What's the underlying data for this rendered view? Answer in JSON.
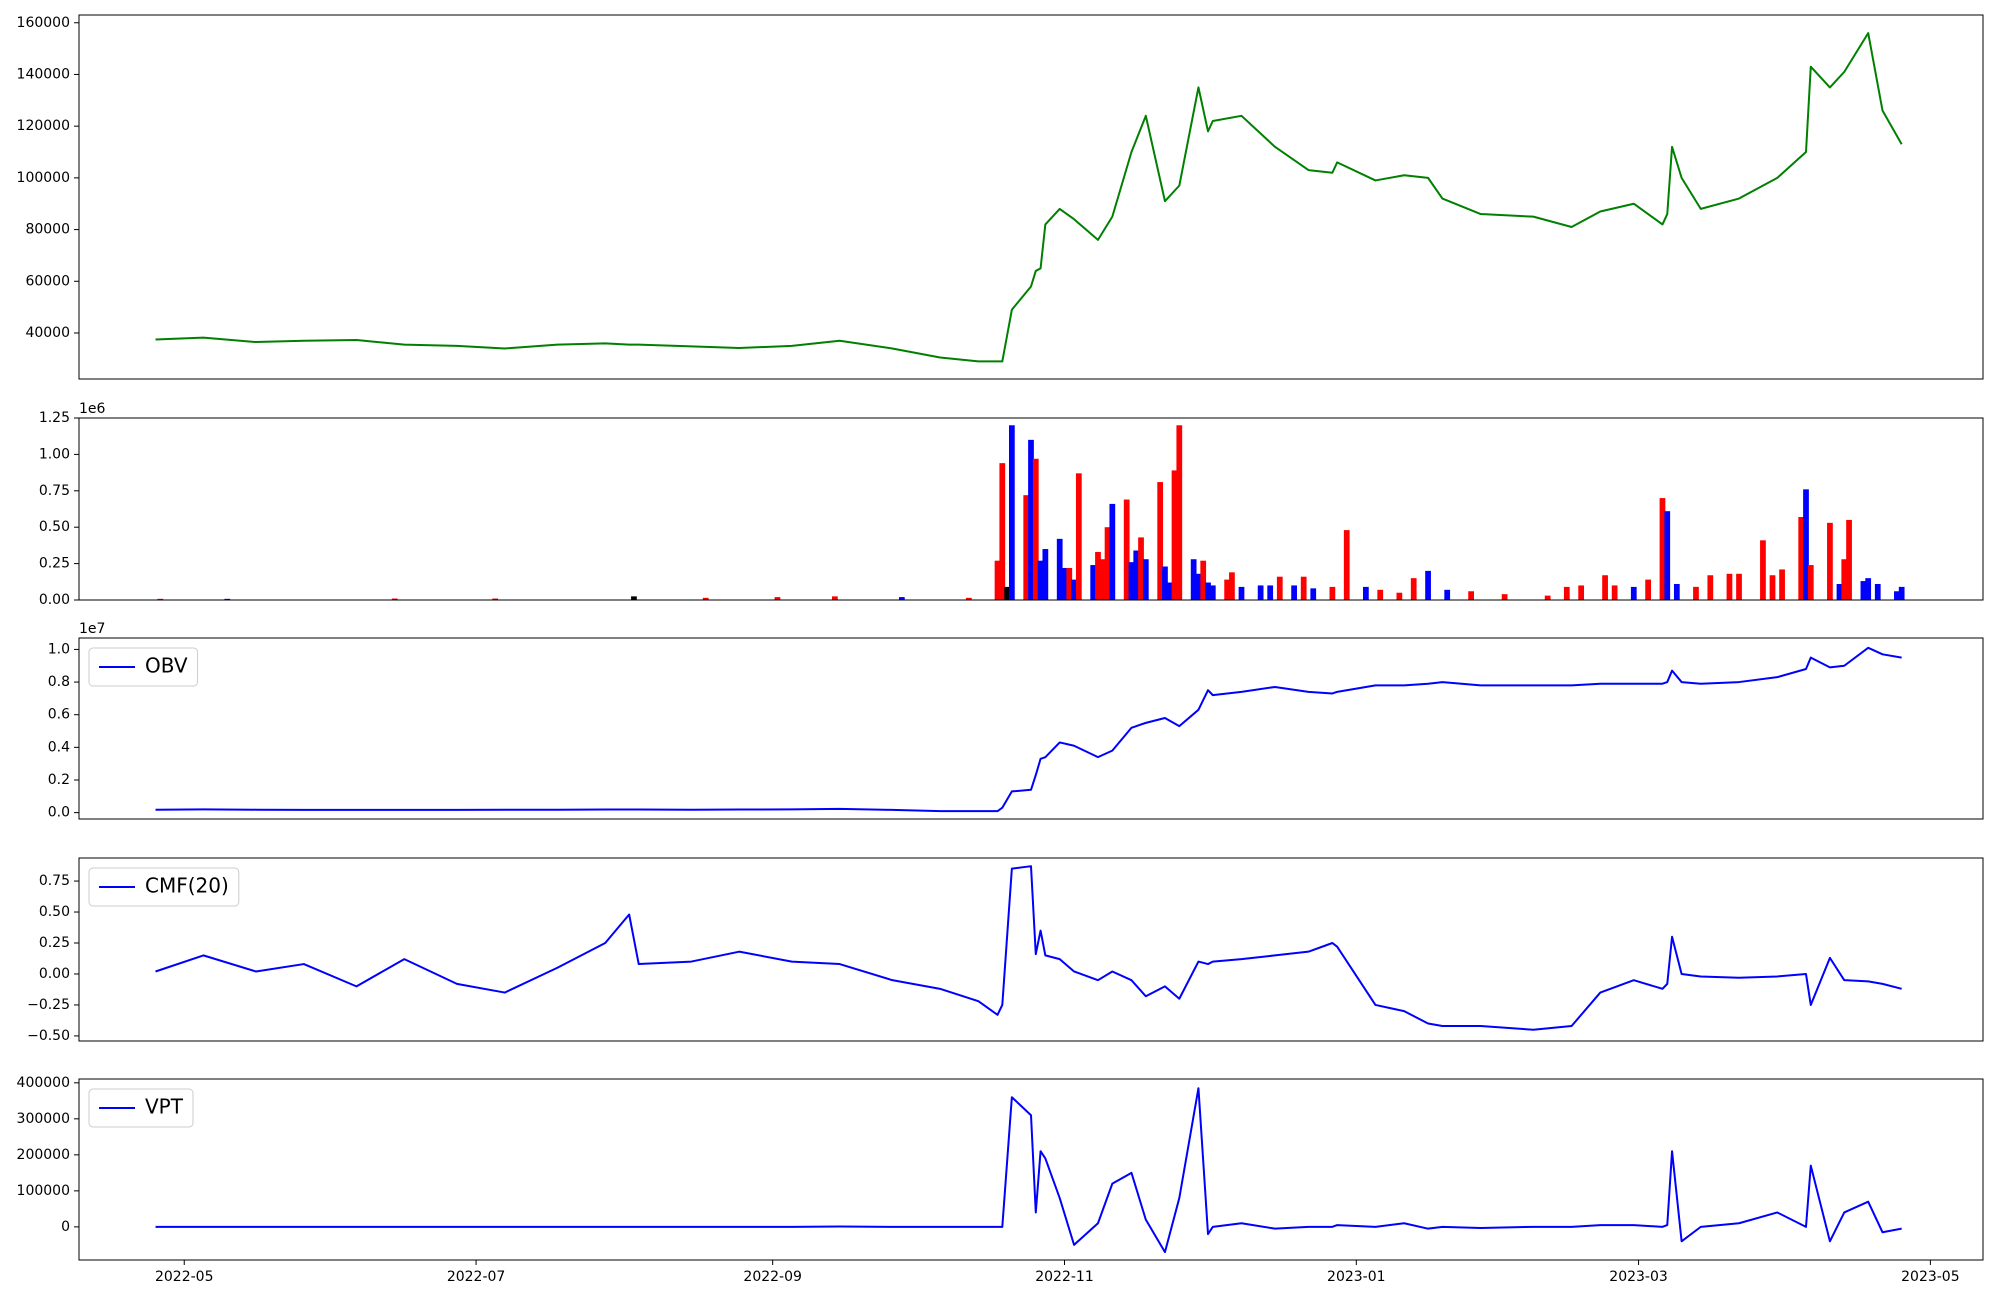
{
  "chart_data": [
    {
      "type": "line",
      "x": [
        "2022-04-25",
        "2022-05-05",
        "2022-05-16",
        "2022-05-26",
        "2022-06-06",
        "2022-06-16",
        "2022-06-27",
        "2022-07-07",
        "2022-07-18",
        "2022-07-28",
        "2022-08-02",
        "2022-08-04",
        "2022-08-15",
        "2022-08-25",
        "2022-09-05",
        "2022-09-15",
        "2022-09-26",
        "2022-10-06",
        "2022-10-14",
        "2022-10-18",
        "2022-10-19",
        "2022-10-21",
        "2022-10-25",
        "2022-10-26",
        "2022-10-27",
        "2022-10-28",
        "2022-10-31",
        "2022-11-03",
        "2022-11-08",
        "2022-11-11",
        "2022-11-15",
        "2022-11-18",
        "2022-11-22",
        "2022-11-25",
        "2022-11-29",
        "2022-12-01",
        "2022-12-02",
        "2022-12-08",
        "2022-12-15",
        "2022-12-22",
        "2022-12-27",
        "2022-12-28",
        "2023-01-05",
        "2023-01-11",
        "2023-01-16",
        "2023-01-19",
        "2023-01-27",
        "2023-02-07",
        "2023-02-15",
        "2023-02-21",
        "2023-02-28",
        "2023-03-06",
        "2023-03-07",
        "2023-03-08",
        "2023-03-10",
        "2023-03-14",
        "2023-03-22",
        "2023-03-30",
        "2023-04-05",
        "2023-04-06",
        "2023-04-10",
        "2023-04-13",
        "2023-04-18",
        "2023-04-21",
        "2023-04-25"
      ],
      "series": [
        {
          "color": "#008000",
          "values": [
            37500,
            38200,
            36500,
            37000,
            37300,
            35500,
            35000,
            34000,
            35500,
            36000,
            35500,
            35500,
            34800,
            34200,
            35000,
            37000,
            34000,
            30500,
            29000,
            29000,
            29000,
            49000,
            58000,
            64000,
            65000,
            82000,
            88000,
            84000,
            76000,
            85000,
            110000,
            124000,
            91000,
            97000,
            135000,
            118000,
            122000,
            124000,
            112000,
            103000,
            102000,
            106000,
            99000,
            101000,
            100000,
            92000,
            86000,
            85000,
            81000,
            87000,
            90000,
            82000,
            86000,
            112000,
            100000,
            88000,
            92000,
            100000,
            110000,
            143000,
            135000,
            141000,
            156000,
            126000,
            113000
          ]
        }
      ],
      "xlim": [
        "2022-04-09",
        "2023-05-12"
      ],
      "ylim": [
        22200,
        163000
      ],
      "yticks": [
        40000,
        60000,
        80000,
        100000,
        120000,
        140000,
        160000
      ]
    },
    {
      "type": "bar",
      "x": [
        "2022-04-26",
        "2022-05-10",
        "2022-06-14",
        "2022-07-05",
        "2022-08-03",
        "2022-08-18",
        "2022-09-02",
        "2022-09-14",
        "2022-09-28",
        "2022-10-12",
        "2022-10-18",
        "2022-10-19",
        "2022-10-20",
        "2022-10-21",
        "2022-10-24",
        "2022-10-25",
        "2022-10-26",
        "2022-10-27",
        "2022-10-28",
        "2022-10-31",
        "2022-11-01",
        "2022-11-02",
        "2022-11-03",
        "2022-11-04",
        "2022-11-07",
        "2022-11-08",
        "2022-11-09",
        "2022-11-10",
        "2022-11-11",
        "2022-11-14",
        "2022-11-15",
        "2022-11-16",
        "2022-11-17",
        "2022-11-18",
        "2022-11-21",
        "2022-11-22",
        "2022-11-23",
        "2022-11-24",
        "2022-11-25",
        "2022-11-28",
        "2022-11-29",
        "2022-11-30",
        "2022-12-01",
        "2022-12-02",
        "2022-12-05",
        "2022-12-06",
        "2022-12-08",
        "2022-12-12",
        "2022-12-14",
        "2022-12-16",
        "2022-12-19",
        "2022-12-21",
        "2022-12-23",
        "2022-12-27",
        "2022-12-30",
        "2023-01-03",
        "2023-01-06",
        "2023-01-10",
        "2023-01-13",
        "2023-01-16",
        "2023-01-20",
        "2023-01-25",
        "2023-02-01",
        "2023-02-10",
        "2023-02-14",
        "2023-02-17",
        "2023-02-22",
        "2023-02-24",
        "2023-02-28",
        "2023-03-03",
        "2023-03-06",
        "2023-03-07",
        "2023-03-09",
        "2023-03-13",
        "2023-03-16",
        "2023-03-20",
        "2023-03-22",
        "2023-03-27",
        "2023-03-29",
        "2023-03-31",
        "2023-04-04",
        "2023-04-05",
        "2023-04-06",
        "2023-04-10",
        "2023-04-12",
        "2023-04-13",
        "2023-04-14",
        "2023-04-17",
        "2023-04-18",
        "2023-04-20",
        "2023-04-24",
        "2023-04-25"
      ],
      "values": [
        8000,
        8000,
        10000,
        10000,
        25000,
        15000,
        20000,
        25000,
        20000,
        15000,
        270000,
        940000,
        90000,
        1200000,
        720000,
        1100000,
        970000,
        270000,
        350000,
        420000,
        220000,
        220000,
        140000,
        870000,
        240000,
        330000,
        280000,
        500000,
        660000,
        690000,
        260000,
        340000,
        430000,
        280000,
        810000,
        230000,
        120000,
        890000,
        1200000,
        280000,
        180000,
        270000,
        120000,
        100000,
        140000,
        190000,
        90000,
        100000,
        100000,
        160000,
        100000,
        160000,
        80000,
        90000,
        480000,
        90000,
        70000,
        50000,
        150000,
        200000,
        70000,
        60000,
        40000,
        30000,
        90000,
        100000,
        170000,
        100000,
        90000,
        140000,
        700000,
        610000,
        110000,
        90000,
        170000,
        180000,
        180000,
        410000,
        170000,
        210000,
        570000,
        760000,
        240000,
        530000,
        110000,
        280000,
        550000,
        130000,
        150000,
        110000,
        60000,
        90000
      ],
      "colors": [
        "#ff0000",
        "#0000ff",
        "#ff0000",
        "#ff0000",
        "#000000",
        "#ff0000",
        "#ff0000",
        "#ff0000",
        "#0000ff",
        "#ff0000",
        "#ff0000",
        "#ff0000",
        "#000000",
        "#0000ff",
        "#ff0000",
        "#0000ff",
        "#ff0000",
        "#0000ff",
        "#0000ff",
        "#0000ff",
        "#0000ff",
        "#ff0000",
        "#0000ff",
        "#ff0000",
        "#0000ff",
        "#ff0000",
        "#ff0000",
        "#ff0000",
        "#0000ff",
        "#ff0000",
        "#0000ff",
        "#0000ff",
        "#ff0000",
        "#0000ff",
        "#ff0000",
        "#0000ff",
        "#0000ff",
        "#ff0000",
        "#ff0000",
        "#0000ff",
        "#0000ff",
        "#ff0000",
        "#0000ff",
        "#0000ff",
        "#ff0000",
        "#ff0000",
        "#0000ff",
        "#0000ff",
        "#0000ff",
        "#ff0000",
        "#0000ff",
        "#ff0000",
        "#0000ff",
        "#ff0000",
        "#ff0000",
        "#0000ff",
        "#ff0000",
        "#ff0000",
        "#ff0000",
        "#0000ff",
        "#0000ff",
        "#ff0000",
        "#ff0000",
        "#ff0000",
        "#ff0000",
        "#ff0000",
        "#ff0000",
        "#ff0000",
        "#0000ff",
        "#ff0000",
        "#ff0000",
        "#0000ff",
        "#0000ff",
        "#ff0000",
        "#ff0000",
        "#ff0000",
        "#ff0000",
        "#ff0000",
        "#ff0000",
        "#ff0000",
        "#ff0000",
        "#0000ff",
        "#ff0000",
        "#ff0000",
        "#0000ff",
        "#ff0000",
        "#ff0000",
        "#0000ff",
        "#0000ff",
        "#0000ff",
        "#0000ff",
        "#0000ff"
      ],
      "offset_label": "1e6",
      "xlim": [
        "2022-04-09",
        "2023-05-12"
      ],
      "ylim": [
        0,
        1250000
      ],
      "yticks": [
        {
          "value": 0,
          "label": "0.00"
        },
        {
          "value": 250000,
          "label": "0.25"
        },
        {
          "value": 500000,
          "label": "0.50"
        },
        {
          "value": 750000,
          "label": "0.75"
        },
        {
          "value": 1000000,
          "label": "1.00"
        },
        {
          "value": 1250000,
          "label": "1.25"
        }
      ]
    },
    {
      "type": "line",
      "x": [
        "2022-04-25",
        "2022-05-05",
        "2022-05-16",
        "2022-05-26",
        "2022-06-06",
        "2022-06-16",
        "2022-06-27",
        "2022-07-07",
        "2022-07-18",
        "2022-07-28",
        "2022-08-02",
        "2022-08-04",
        "2022-08-15",
        "2022-08-25",
        "2022-09-05",
        "2022-09-15",
        "2022-09-26",
        "2022-10-06",
        "2022-10-14",
        "2022-10-18",
        "2022-10-19",
        "2022-10-21",
        "2022-10-25",
        "2022-10-26",
        "2022-10-27",
        "2022-10-28",
        "2022-10-31",
        "2022-11-03",
        "2022-11-08",
        "2022-11-11",
        "2022-11-15",
        "2022-11-18",
        "2022-11-22",
        "2022-11-25",
        "2022-11-29",
        "2022-12-01",
        "2022-12-02",
        "2022-12-08",
        "2022-12-15",
        "2022-12-22",
        "2022-12-27",
        "2022-12-28",
        "2023-01-05",
        "2023-01-11",
        "2023-01-16",
        "2023-01-19",
        "2023-01-27",
        "2023-02-07",
        "2023-02-15",
        "2023-02-21",
        "2023-02-28",
        "2023-03-06",
        "2023-03-07",
        "2023-03-08",
        "2023-03-10",
        "2023-03-14",
        "2023-03-22",
        "2023-03-30",
        "2023-04-05",
        "2023-04-06",
        "2023-04-10",
        "2023-04-13",
        "2023-04-18",
        "2023-04-21",
        "2023-04-25"
      ],
      "series": [
        {
          "name": "OBV",
          "color": "#0000ff",
          "values": [
            180000,
            200000,
            180000,
            170000,
            170000,
            170000,
            170000,
            180000,
            180000,
            190000,
            190000,
            190000,
            180000,
            190000,
            200000,
            230000,
            170000,
            90000,
            90000,
            90000,
            300000,
            1300000,
            1400000,
            2300000,
            3300000,
            3400000,
            4300000,
            4100000,
            3400000,
            3800000,
            5200000,
            5500000,
            5800000,
            5300000,
            6300000,
            7500000,
            7200000,
            7400000,
            7700000,
            7400000,
            7300000,
            7400000,
            7800000,
            7800000,
            7900000,
            8000000,
            7800000,
            7800000,
            7800000,
            7900000,
            7900000,
            7900000,
            8000000,
            8700000,
            8000000,
            7900000,
            8000000,
            8300000,
            8800000,
            9500000,
            8900000,
            9000000,
            10100000,
            9700000,
            9500000
          ]
        }
      ],
      "legend": "upper left",
      "offset_label": "1e7",
      "xlim": [
        "2022-04-09",
        "2023-05-12"
      ],
      "ylim": [
        -390000,
        10700000
      ],
      "yticks": [
        {
          "value": 0,
          "label": "0.0"
        },
        {
          "value": 2000000,
          "label": "0.2"
        },
        {
          "value": 4000000,
          "label": "0.4"
        },
        {
          "value": 6000000,
          "label": "0.6"
        },
        {
          "value": 8000000,
          "label": "0.8"
        },
        {
          "value": 10000000,
          "label": "1.0"
        }
      ]
    },
    {
      "type": "line",
      "x": [
        "2022-04-25",
        "2022-05-05",
        "2022-05-16",
        "2022-05-26",
        "2022-06-06",
        "2022-06-16",
        "2022-06-27",
        "2022-07-07",
        "2022-07-18",
        "2022-07-28",
        "2022-08-02",
        "2022-08-04",
        "2022-08-15",
        "2022-08-25",
        "2022-09-05",
        "2022-09-15",
        "2022-09-26",
        "2022-10-06",
        "2022-10-14",
        "2022-10-18",
        "2022-10-19",
        "2022-10-21",
        "2022-10-25",
        "2022-10-26",
        "2022-10-27",
        "2022-10-28",
        "2022-10-31",
        "2022-11-03",
        "2022-11-08",
        "2022-11-11",
        "2022-11-15",
        "2022-11-18",
        "2022-11-22",
        "2022-11-25",
        "2022-11-29",
        "2022-12-01",
        "2022-12-02",
        "2022-12-08",
        "2022-12-15",
        "2022-12-22",
        "2022-12-27",
        "2022-12-28",
        "2023-01-05",
        "2023-01-11",
        "2023-01-16",
        "2023-01-19",
        "2023-01-27",
        "2023-02-07",
        "2023-02-15",
        "2023-02-21",
        "2023-02-28",
        "2023-03-06",
        "2023-03-07",
        "2023-03-08",
        "2023-03-10",
        "2023-03-14",
        "2023-03-22",
        "2023-03-30",
        "2023-04-05",
        "2023-04-06",
        "2023-04-10",
        "2023-04-13",
        "2023-04-18",
        "2023-04-21",
        "2023-04-25"
      ],
      "series": [
        {
          "name": "CMF(20)",
          "color": "#0000ff",
          "values": [
            0.02,
            0.15,
            0.02,
            0.08,
            -0.1,
            0.12,
            -0.08,
            -0.15,
            0.05,
            0.25,
            0.48,
            0.08,
            0.1,
            0.18,
            0.1,
            0.08,
            -0.05,
            -0.12,
            -0.22,
            -0.33,
            -0.25,
            0.85,
            0.87,
            0.16,
            0.35,
            0.15,
            0.12,
            0.02,
            -0.05,
            0.02,
            -0.05,
            -0.18,
            -0.1,
            -0.2,
            0.1,
            0.08,
            0.1,
            0.12,
            0.15,
            0.18,
            0.25,
            0.22,
            -0.25,
            -0.3,
            -0.4,
            -0.42,
            -0.42,
            -0.45,
            -0.42,
            -0.15,
            -0.05,
            -0.12,
            -0.08,
            0.3,
            0.0,
            -0.02,
            -0.03,
            -0.02,
            0.0,
            -0.25,
            0.13,
            -0.05,
            -0.06,
            -0.08,
            -0.12
          ]
        }
      ],
      "legend": "upper left",
      "xlim": [
        "2022-04-09",
        "2023-05-12"
      ],
      "ylim": [
        -0.541,
        0.936
      ],
      "yticks": [
        {
          "value": -0.5,
          "label": "−0.50"
        },
        {
          "value": -0.25,
          "label": "−0.25"
        },
        {
          "value": 0,
          "label": "0.00"
        },
        {
          "value": 0.25,
          "label": "0.25"
        },
        {
          "value": 0.5,
          "label": "0.50"
        },
        {
          "value": 0.75,
          "label": "0.75"
        }
      ]
    },
    {
      "type": "line",
      "x": [
        "2022-04-25",
        "2022-05-05",
        "2022-05-16",
        "2022-05-26",
        "2022-06-06",
        "2022-06-16",
        "2022-06-27",
        "2022-07-07",
        "2022-07-18",
        "2022-07-28",
        "2022-08-02",
        "2022-08-04",
        "2022-08-15",
        "2022-08-25",
        "2022-09-05",
        "2022-09-15",
        "2022-09-26",
        "2022-10-06",
        "2022-10-14",
        "2022-10-18",
        "2022-10-19",
        "2022-10-21",
        "2022-10-25",
        "2022-10-26",
        "2022-10-27",
        "2022-10-28",
        "2022-10-31",
        "2022-11-03",
        "2022-11-08",
        "2022-11-11",
        "2022-11-15",
        "2022-11-18",
        "2022-11-22",
        "2022-11-25",
        "2022-11-29",
        "2022-12-01",
        "2022-12-02",
        "2022-12-08",
        "2022-12-15",
        "2022-12-22",
        "2022-12-27",
        "2022-12-28",
        "2023-01-05",
        "2023-01-11",
        "2023-01-16",
        "2023-01-19",
        "2023-01-27",
        "2023-02-07",
        "2023-02-15",
        "2023-02-21",
        "2023-02-28",
        "2023-03-06",
        "2023-03-07",
        "2023-03-08",
        "2023-03-10",
        "2023-03-14",
        "2023-03-22",
        "2023-03-30",
        "2023-04-05",
        "2023-04-06",
        "2023-04-10",
        "2023-04-13",
        "2023-04-18",
        "2023-04-21",
        "2023-04-25"
      ],
      "series": [
        {
          "name": "VPT",
          "color": "#0000ff",
          "values": [
            0,
            0,
            0,
            0,
            0,
            0,
            0,
            0,
            0,
            0,
            0,
            0,
            0,
            0,
            0,
            1000,
            0,
            0,
            0,
            0,
            0,
            360000,
            310000,
            40000,
            210000,
            190000,
            80000,
            -50000,
            10000,
            120000,
            150000,
            20000,
            -70000,
            80000,
            385000,
            -20000,
            0,
            10000,
            -5000,
            0,
            0,
            5000,
            0,
            10000,
            -5000,
            0,
            -3000,
            0,
            0,
            5000,
            5000,
            0,
            5000,
            210000,
            -40000,
            0,
            10000,
            40000,
            0,
            170000,
            -40000,
            40000,
            70000,
            -15000,
            -5000
          ]
        }
      ],
      "legend": "upper left",
      "xlim": [
        "2022-04-09",
        "2023-05-12"
      ],
      "ylim": [
        -92000,
        410600
      ],
      "yticks": [
        0,
        100000,
        200000,
        300000,
        400000
      ],
      "xticks": [
        {
          "value": "2022-05-01",
          "label": "2022-05"
        },
        {
          "value": "2022-07-01",
          "label": "2022-07"
        },
        {
          "value": "2022-09-01",
          "label": "2022-09"
        },
        {
          "value": "2022-11-01",
          "label": "2022-11"
        },
        {
          "value": "2023-01-01",
          "label": "2023-01"
        },
        {
          "value": "2023-03-01",
          "label": "2023-03"
        },
        {
          "value": "2023-05-01",
          "label": "2023-05"
        }
      ]
    }
  ]
}
